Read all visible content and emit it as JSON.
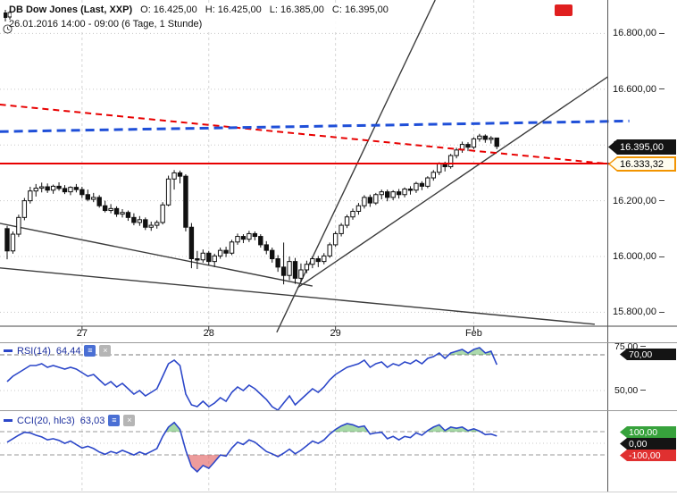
{
  "header": {
    "title": "DB Dow Jones (Last, XXP)",
    "open": "O: 16.425,00",
    "high": "H: 16.425,00",
    "low": "L: 16.385,00",
    "close": "C: 16.395,00",
    "timeframe": "26.01.2016 14:00 - 09:00 (6 Tage, 1 Stunde)"
  },
  "badges": {
    "last_price": "16.395,00",
    "level": "16.333,32"
  },
  "indicators": {
    "rsi": {
      "label": "RSI(14)",
      "value": "64,44",
      "upper_tick": "75,00",
      "level_badge": "70,00",
      "mid_tick": "50,00"
    },
    "cci": {
      "label": "CCI(20, hlc3)",
      "value": "63,03",
      "upper_badge": "100,00",
      "zero_badge": "0,00",
      "lower_badge": "-100,00"
    }
  },
  "icons": {
    "settings": "≡",
    "close": "×"
  },
  "colors": {
    "red_line": "#e80000",
    "blue_dashed": "#1f4fd8",
    "indicator_line": "#2c47c9",
    "green_badge": "#37a23c",
    "red_badge": "#e03030",
    "black_badge": "#141414",
    "orange_badge": "#f29400",
    "trendline": "#3c3c3c"
  },
  "chart_data": [
    {
      "type": "candlestick",
      "title": "DB Dow Jones (Last, XXP)",
      "timeframe": "6 Tage, 1 Stunde",
      "ylim": [
        15750,
        16920
      ],
      "y_ticks": [
        {
          "v": 16800,
          "label": "16.800,00"
        },
        {
          "v": 16600,
          "label": "16.600,00"
        },
        {
          "v": 16400,
          "label": "16.400,00"
        },
        {
          "v": 16200,
          "label": "16.200,00"
        },
        {
          "v": 16000,
          "label": "16.000,00"
        },
        {
          "v": 15800,
          "label": "15.800,00"
        }
      ],
      "x_ticks": [
        {
          "i": 13,
          "label": "27"
        },
        {
          "i": 35,
          "label": "28"
        },
        {
          "i": 57,
          "label": "29"
        },
        {
          "i": 81,
          "label": "Feb"
        }
      ],
      "last_price": 16395,
      "levels": [
        {
          "price": 16333.32,
          "color": "#e80000",
          "width": 2
        }
      ],
      "trendlines": [
        {
          "x1": 46.8,
          "p1": 15728,
          "x2": 74.3,
          "p2": 16920,
          "color": "#3c3c3c",
          "width": 1.4,
          "clip": true
        },
        {
          "x1": 50.4,
          "p1": 15888,
          "x2": 106.5,
          "p2": 16676,
          "color": "#3c3c3c",
          "width": 1.4,
          "clip": true
        },
        {
          "x1": -1.3,
          "p1": 16119,
          "x2": 53,
          "p2": 15894,
          "color": "#3c3c3c",
          "width": 1.4,
          "clip": true
        },
        {
          "x1": -1.3,
          "p1": 15959,
          "x2": 102,
          "p2": 15757,
          "color": "#3c3c3c",
          "width": 1.4,
          "clip": true
        },
        {
          "x1": -1.3,
          "p1": 16545,
          "x2": 105,
          "p2": 16331,
          "color": "#e80000",
          "width": 2,
          "dash": "7,5"
        },
        {
          "x1": -1.3,
          "p1": 16448,
          "x2": 108,
          "p2": 16486,
          "color": "#1f4fd8",
          "width": 3,
          "dash": "10,6"
        }
      ],
      "candles": [
        [
          16100,
          16110,
          15990,
          16020
        ],
        [
          16020,
          16090,
          16010,
          16080
        ],
        [
          16080,
          16150,
          16070,
          16140
        ],
        [
          16140,
          16210,
          16130,
          16200
        ],
        [
          16200,
          16250,
          16190,
          16235
        ],
        [
          16235,
          16260,
          16215,
          16245
        ],
        [
          16245,
          16265,
          16230,
          16250
        ],
        [
          16250,
          16262,
          16228,
          16238
        ],
        [
          16238,
          16258,
          16225,
          16252
        ],
        [
          16252,
          16266,
          16236,
          16244
        ],
        [
          16244,
          16256,
          16224,
          16232
        ],
        [
          16232,
          16252,
          16220,
          16248
        ],
        [
          16248,
          16260,
          16230,
          16240
        ],
        [
          16240,
          16250,
          16210,
          16222
        ],
        [
          16222,
          16240,
          16198,
          16205
        ],
        [
          16205,
          16228,
          16195,
          16212
        ],
        [
          16212,
          16220,
          16175,
          16182
        ],
        [
          16182,
          16200,
          16158,
          16165
        ],
        [
          16165,
          16188,
          16155,
          16172
        ],
        [
          16172,
          16180,
          16142,
          16152
        ],
        [
          16152,
          16170,
          16140,
          16158
        ],
        [
          16158,
          16165,
          16128,
          16140
        ],
        [
          16140,
          16155,
          16112,
          16122
        ],
        [
          16122,
          16145,
          16110,
          16132
        ],
        [
          16132,
          16140,
          16095,
          16105
        ],
        [
          16105,
          16125,
          16092,
          16112
        ],
        [
          16112,
          16130,
          16100,
          16122
        ],
        [
          16122,
          16195,
          16115,
          16185
        ],
        [
          16185,
          16290,
          16180,
          16278
        ],
        [
          16278,
          16310,
          16240,
          16300
        ],
        [
          16300,
          16308,
          16262,
          16288
        ],
        [
          16288,
          16295,
          16090,
          16105
        ],
        [
          16105,
          16120,
          15958,
          15992
        ],
        [
          15992,
          16020,
          15955,
          15988
        ],
        [
          15988,
          16025,
          15978,
          16012
        ],
        [
          16012,
          16020,
          15968,
          15982
        ],
        [
          15982,
          16010,
          15962,
          16002
        ],
        [
          16002,
          16032,
          15992,
          16022
        ],
        [
          16022,
          16035,
          15998,
          16012
        ],
        [
          16012,
          16060,
          16005,
          16052
        ],
        [
          16052,
          16082,
          16042,
          16072
        ],
        [
          16072,
          16080,
          16048,
          16062
        ],
        [
          16062,
          16092,
          16052,
          16082
        ],
        [
          16082,
          16090,
          16058,
          16072
        ],
        [
          16072,
          16080,
          16032,
          16042
        ],
        [
          16042,
          16055,
          16008,
          16022
        ],
        [
          16022,
          16032,
          15978,
          15992
        ],
        [
          15992,
          16005,
          15945,
          15962
        ],
        [
          15962,
          16050,
          15900,
          15932
        ],
        [
          15932,
          16000,
          15915,
          15982
        ],
        [
          15982,
          15995,
          15902,
          15922
        ],
        [
          15922,
          15975,
          15908,
          15952
        ],
        [
          15952,
          15985,
          15940,
          15972
        ],
        [
          15972,
          16000,
          15958,
          15992
        ],
        [
          15992,
          16002,
          15962,
          15982
        ],
        [
          15982,
          16012,
          15972,
          16002
        ],
        [
          16002,
          16050,
          15995,
          16042
        ],
        [
          16042,
          16090,
          16035,
          16082
        ],
        [
          16082,
          16120,
          16072,
          16112
        ],
        [
          16112,
          16150,
          16102,
          16142
        ],
        [
          16142,
          16172,
          16132,
          16162
        ],
        [
          16162,
          16192,
          16150,
          16182
        ],
        [
          16182,
          16220,
          16172,
          16212
        ],
        [
          16212,
          16222,
          16178,
          16192
        ],
        [
          16192,
          16228,
          16185,
          16222
        ],
        [
          16222,
          16240,
          16205,
          16232
        ],
        [
          16232,
          16240,
          16198,
          16212
        ],
        [
          16212,
          16238,
          16202,
          16232
        ],
        [
          16232,
          16242,
          16208,
          16222
        ],
        [
          16222,
          16248,
          16212,
          16242
        ],
        [
          16242,
          16252,
          16222,
          16238
        ],
        [
          16238,
          16268,
          16228,
          16262
        ],
        [
          16262,
          16270,
          16238,
          16252
        ],
        [
          16252,
          16288,
          16245,
          16282
        ],
        [
          16282,
          16310,
          16272,
          16302
        ],
        [
          16302,
          16338,
          16292,
          16332
        ],
        [
          16332,
          16340,
          16305,
          16322
        ],
        [
          16322,
          16368,
          16315,
          16362
        ],
        [
          16362,
          16390,
          16352,
          16382
        ],
        [
          16382,
          16412,
          16372,
          16402
        ],
        [
          16402,
          16410,
          16378,
          16392
        ],
        [
          16392,
          16428,
          16385,
          16422
        ],
        [
          16422,
          16440,
          16412,
          16432
        ],
        [
          16432,
          16438,
          16408,
          16420
        ],
        [
          16420,
          16432,
          16405,
          16425
        ],
        [
          16425,
          16425,
          16385,
          16395
        ]
      ]
    },
    {
      "type": "line",
      "name": "RSI(14)",
      "current": 64.44,
      "color": "#2c47c9",
      "ylim": [
        39,
        76.5
      ],
      "overbought": 70,
      "midline": 50,
      "values": [
        55,
        58,
        60,
        62,
        64,
        64,
        65,
        63,
        64,
        63,
        62,
        63,
        62,
        60,
        58,
        59,
        56,
        53,
        55,
        52,
        54,
        51,
        48,
        50,
        47,
        49,
        51,
        58,
        65,
        67,
        64,
        48,
        42,
        41,
        44,
        41,
        43,
        46,
        44,
        49,
        52,
        50,
        53,
        51,
        48,
        45,
        41,
        39,
        43,
        47,
        42,
        45,
        48,
        51,
        49,
        52,
        56,
        59,
        61,
        63,
        64,
        65,
        67,
        63,
        65,
        66,
        63,
        65,
        64,
        66,
        65,
        67,
        65,
        68,
        69,
        71,
        68,
        71,
        72,
        73,
        71,
        73,
        74,
        71,
        72,
        64.44
      ]
    },
    {
      "type": "line",
      "name": "CCI(20, hlc3)",
      "current": 63.03,
      "color": "#2c47c9",
      "ylim": [
        -415,
        262
      ],
      "upper": 100,
      "zero": 0,
      "lower": -100,
      "values": [
        10,
        40,
        70,
        95,
        90,
        70,
        55,
        30,
        40,
        25,
        0,
        20,
        -10,
        -40,
        -25,
        -45,
        -75,
        -95,
        -70,
        -85,
        -60,
        -80,
        -100,
        -75,
        -95,
        -70,
        -45,
        60,
        140,
        180,
        120,
        -60,
        -200,
        -245,
        -190,
        -215,
        -160,
        -100,
        -110,
        -40,
        10,
        -10,
        30,
        10,
        -30,
        -70,
        -90,
        -115,
        -85,
        -50,
        -90,
        -60,
        -20,
        20,
        0,
        30,
        80,
        120,
        150,
        170,
        160,
        140,
        150,
        80,
        90,
        95,
        40,
        60,
        30,
        60,
        50,
        90,
        70,
        110,
        140,
        160,
        110,
        140,
        130,
        140,
        110,
        125,
        105,
        75,
        80,
        63.03
      ]
    }
  ]
}
